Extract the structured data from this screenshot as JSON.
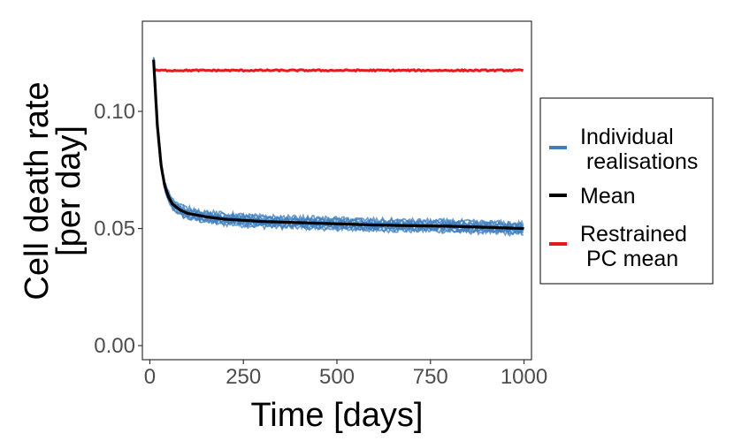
{
  "chart_data": {
    "type": "line",
    "xlabel": "Time [days]",
    "ylabel_lines": [
      "Cell death rate",
      "[per day]"
    ],
    "xlim": [
      -20,
      1020
    ],
    "ylim": [
      -0.006,
      0.1385
    ],
    "xticks": [
      0,
      250,
      500,
      750,
      1000
    ],
    "xtick_labels": [
      "0",
      "250",
      "500",
      "750",
      "1000"
    ],
    "yticks": [
      0.0,
      0.05,
      0.1
    ],
    "ytick_labels": [
      "0.00",
      "0.05",
      "0.10"
    ],
    "grid": false,
    "legend_position": "right",
    "series": [
      {
        "name": "Individual realisations",
        "legend_lines": [
          "Individual",
          " realisations"
        ],
        "color": "#3f7fbf",
        "kind": "realisations",
        "count": 10,
        "x": [
          10,
          20,
          30,
          40,
          50,
          60,
          80,
          100,
          150,
          200,
          250,
          300,
          400,
          500,
          600,
          700,
          800,
          900,
          1000
        ],
        "y": [
          0.122,
          0.094,
          0.077,
          0.068,
          0.0635,
          0.0605,
          0.058,
          0.0565,
          0.055,
          0.054,
          0.0535,
          0.053,
          0.0525,
          0.052,
          0.0515,
          0.0512,
          0.051,
          0.0505,
          0.05
        ]
      },
      {
        "name": "Mean",
        "legend_lines": [
          "Mean"
        ],
        "color": "#000000",
        "kind": "mean",
        "x": [
          10,
          20,
          30,
          40,
          50,
          60,
          80,
          100,
          150,
          200,
          250,
          300,
          400,
          500,
          600,
          700,
          800,
          900,
          1000
        ],
        "y": [
          0.122,
          0.094,
          0.077,
          0.068,
          0.0635,
          0.0605,
          0.058,
          0.0565,
          0.055,
          0.054,
          0.0535,
          0.053,
          0.0525,
          0.052,
          0.0515,
          0.0512,
          0.051,
          0.0505,
          0.05
        ]
      },
      {
        "name": "Restrained PC mean",
        "legend_lines": [
          "Restrained",
          " PC mean"
        ],
        "color": "#e41a1c",
        "kind": "restrained",
        "x": [
          10,
          1000
        ],
        "y": [
          0.1175,
          0.1175
        ]
      }
    ]
  }
}
